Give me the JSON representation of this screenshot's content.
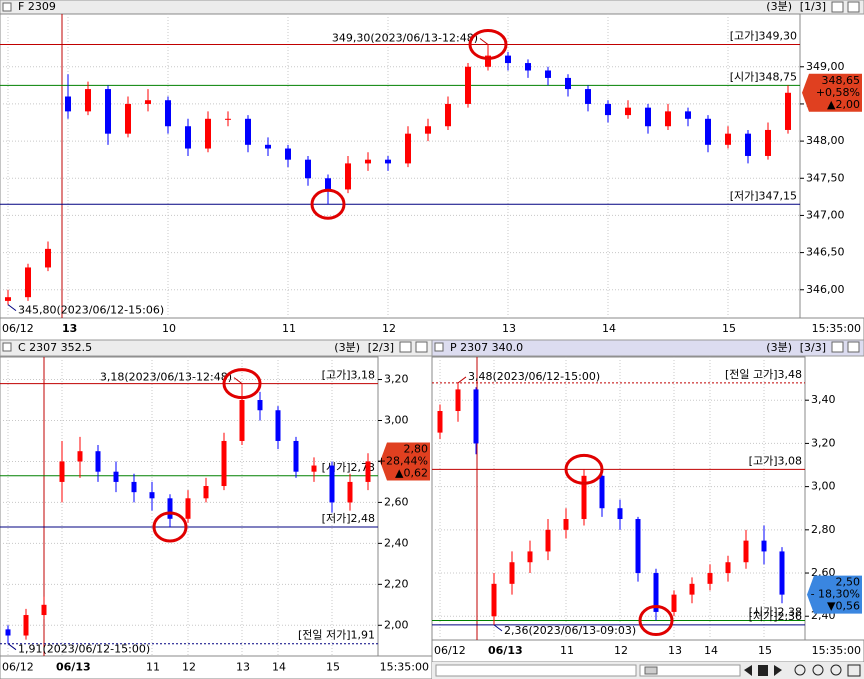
{
  "chart_data": [
    {
      "type": "candlestick",
      "title": "F 2309",
      "period": "(3분)",
      "page": "[1/3]",
      "up_color": "#ff0000",
      "down_color": "#0000ff",
      "categories": [
        "06/12",
        null,
        null,
        "13",
        null,
        null,
        null,
        null,
        "10",
        null,
        null,
        null,
        null,
        null,
        "11",
        null,
        null,
        null,
        null,
        "12",
        null,
        null,
        null,
        null,
        null,
        "13",
        null,
        null,
        null,
        null,
        "14",
        null,
        null,
        null,
        null,
        null,
        "15",
        null,
        null,
        null
      ],
      "open": [
        345.85,
        345.9,
        346.3,
        348.6,
        348.4,
        348.7,
        348.1,
        348.5,
        348.55,
        348.2,
        347.9,
        348.3,
        348.3,
        347.95,
        347.9,
        347.75,
        347.5,
        347.35,
        347.7,
        347.75,
        347.7,
        348.1,
        348.2,
        348.5,
        349.0,
        349.15,
        349.05,
        348.95,
        348.85,
        348.7,
        348.5,
        348.35,
        348.45,
        348.2,
        348.4,
        348.3,
        347.95,
        348.1,
        347.8,
        348.15
      ],
      "high": [
        346.0,
        346.35,
        346.65,
        348.9,
        348.8,
        348.75,
        348.6,
        348.7,
        348.6,
        348.3,
        348.4,
        348.4,
        348.35,
        348.05,
        347.95,
        347.8,
        347.55,
        347.8,
        347.85,
        347.8,
        348.2,
        348.3,
        348.6,
        349.05,
        349.3,
        349.2,
        349.1,
        349.0,
        348.9,
        348.75,
        348.55,
        348.55,
        348.5,
        348.5,
        348.45,
        348.35,
        348.2,
        348.15,
        348.25,
        348.75
      ],
      "low": [
        345.8,
        345.85,
        346.25,
        348.3,
        348.35,
        347.95,
        348.05,
        348.4,
        348.1,
        347.8,
        347.85,
        348.2,
        347.85,
        347.8,
        347.65,
        347.4,
        347.15,
        347.3,
        347.6,
        347.6,
        347.65,
        348.0,
        348.15,
        348.45,
        348.95,
        348.95,
        348.85,
        348.75,
        348.6,
        348.4,
        348.25,
        348.3,
        348.1,
        348.15,
        348.2,
        347.85,
        347.9,
        347.7,
        347.75,
        348.1
      ],
      "close": [
        345.9,
        346.3,
        346.55,
        348.4,
        348.7,
        348.1,
        348.5,
        348.55,
        348.2,
        347.9,
        348.3,
        348.3,
        347.95,
        347.9,
        347.75,
        347.5,
        347.35,
        347.7,
        347.75,
        347.7,
        348.1,
        348.2,
        348.5,
        349.0,
        349.15,
        349.05,
        348.95,
        348.85,
        348.7,
        348.5,
        348.35,
        348.45,
        348.2,
        348.4,
        348.3,
        347.95,
        348.1,
        347.8,
        348.15,
        348.65
      ],
      "ylim": [
        345.62,
        349.71
      ],
      "yticks": [
        {
          "value": 346.0,
          "label": "346,00"
        },
        {
          "value": 346.5,
          "label": "346,50"
        },
        {
          "value": 347.0,
          "label": "347,00"
        },
        {
          "value": 347.5,
          "label": "347,50"
        },
        {
          "value": 348.0,
          "label": "348,00"
        },
        {
          "value": 348.5,
          "label": "348,50"
        },
        {
          "value": 349.0,
          "label": "349,00"
        }
      ],
      "levels": [
        {
          "label": "[고가]349,30",
          "value": 349.3,
          "color": "#c00000",
          "style": "solid"
        },
        {
          "label": "[시가]348,75",
          "value": 348.75,
          "color": "#008000",
          "style": "solid"
        },
        {
          "label": "[저가]347,15",
          "value": 347.15,
          "color": "#000080",
          "style": "solid"
        }
      ],
      "max_label": {
        "text": "349,30(2023/06/13-12:48)",
        "value": 349.3
      },
      "min_label": {
        "text": "345,80(2023/06/12-15:06)",
        "value": 345.8
      },
      "current": {
        "texts": [
          "348,65",
          "+0,58%",
          "▲2,00"
        ],
        "value": 348.65,
        "color": "#e04020"
      },
      "x_end_label": "15:35:00"
    },
    {
      "type": "candlestick",
      "title": "C 2307 352.5",
      "period": "(3분)",
      "page": "[2/3]",
      "up_color": "#ff0000",
      "down_color": "#0000ff",
      "categories": [
        "06/12",
        null,
        null,
        "06/13",
        null,
        null,
        null,
        null,
        "11",
        null,
        "12",
        null,
        null,
        "13",
        null,
        "14",
        null,
        null,
        "15",
        null,
        null
      ],
      "open": [
        1.98,
        1.95,
        2.05,
        2.7,
        2.8,
        2.85,
        2.75,
        2.7,
        2.65,
        2.62,
        2.52,
        2.62,
        2.68,
        2.9,
        3.1,
        3.05,
        2.9,
        2.75,
        2.78,
        2.6,
        2.7
      ],
      "high": [
        2.0,
        2.08,
        2.14,
        2.9,
        2.92,
        2.88,
        2.8,
        2.74,
        2.7,
        2.64,
        2.66,
        2.72,
        2.94,
        3.18,
        3.14,
        3.07,
        2.92,
        2.82,
        2.8,
        2.74,
        2.84
      ],
      "low": [
        1.91,
        1.93,
        2.03,
        2.6,
        2.72,
        2.7,
        2.65,
        2.6,
        2.56,
        2.48,
        2.5,
        2.6,
        2.66,
        2.88,
        3.0,
        2.86,
        2.72,
        2.7,
        2.55,
        2.56,
        2.66
      ],
      "close": [
        1.95,
        2.05,
        2.1,
        2.8,
        2.85,
        2.75,
        2.7,
        2.65,
        2.62,
        2.52,
        2.62,
        2.68,
        2.9,
        3.1,
        3.05,
        2.9,
        2.75,
        2.78,
        2.6,
        2.7,
        2.8
      ],
      "ylim": [
        1.85,
        3.31
      ],
      "yticks": [
        {
          "value": 2.0,
          "label": "2,00"
        },
        {
          "value": 2.2,
          "label": "2,20"
        },
        {
          "value": 2.4,
          "label": "2,40"
        },
        {
          "value": 2.6,
          "label": "2,60"
        },
        {
          "value": 2.8,
          "label": "2,80"
        },
        {
          "value": 3.0,
          "label": "3,00"
        },
        {
          "value": 3.2,
          "label": "3,20"
        }
      ],
      "levels": [
        {
          "label": "[고가]3,18",
          "value": 3.18,
          "color": "#c00000",
          "style": "solid"
        },
        {
          "label": "[시가]2,73",
          "value": 2.73,
          "color": "#008000",
          "style": "solid"
        },
        {
          "label": "[저가]2,48",
          "value": 2.48,
          "color": "#000080",
          "style": "solid"
        },
        {
          "label": "[전일 저가]1,91",
          "value": 1.91,
          "color": "#000080",
          "style": "dotted"
        }
      ],
      "max_label": {
        "text": "3,18(2023/06/13-12:48)",
        "value": 3.18
      },
      "min_label": {
        "text": "1,91(2023/06/12-15:00)",
        "value": 1.91
      },
      "current": {
        "texts": [
          "2,80",
          "+28,44%",
          "▲0,62"
        ],
        "value": 2.8,
        "color": "#e04020"
      },
      "x_end_label": "15:35:00"
    },
    {
      "type": "candlestick",
      "title": "P 2307 340.0",
      "period": "(3분)",
      "page": "[3/3]",
      "up_color": "#ff0000",
      "down_color": "#0000ff",
      "categories": [
        "06/12",
        null,
        null,
        "06/13",
        null,
        null,
        null,
        "11",
        null,
        null,
        "12",
        null,
        null,
        "13",
        null,
        "14",
        null,
        null,
        "15",
        null
      ],
      "open": [
        3.25,
        3.35,
        3.45,
        2.4,
        2.55,
        2.65,
        2.7,
        2.8,
        2.85,
        3.05,
        2.9,
        2.85,
        2.6,
        2.42,
        2.5,
        2.55,
        2.6,
        2.65,
        2.75,
        2.7
      ],
      "high": [
        3.38,
        3.48,
        3.46,
        2.6,
        2.7,
        2.75,
        2.85,
        2.9,
        3.08,
        3.06,
        2.94,
        2.86,
        2.62,
        2.52,
        2.58,
        2.64,
        2.68,
        2.8,
        2.82,
        2.72
      ],
      "low": [
        3.22,
        3.3,
        3.15,
        2.36,
        2.5,
        2.6,
        2.66,
        2.76,
        2.82,
        2.86,
        2.8,
        2.56,
        2.38,
        2.4,
        2.46,
        2.52,
        2.56,
        2.62,
        2.64,
        2.46
      ],
      "close": [
        3.35,
        3.45,
        3.2,
        2.55,
        2.65,
        2.7,
        2.8,
        2.85,
        3.05,
        2.9,
        2.85,
        2.6,
        2.42,
        2.5,
        2.55,
        2.6,
        2.65,
        2.75,
        2.7,
        2.5
      ],
      "ylim": [
        2.29,
        3.6
      ],
      "yticks": [
        {
          "value": 2.4,
          "label": "2,40"
        },
        {
          "value": 2.6,
          "label": "2,60"
        },
        {
          "value": 2.8,
          "label": "2,80"
        },
        {
          "value": 3.0,
          "label": "3,00"
        },
        {
          "value": 3.2,
          "label": "3,20"
        },
        {
          "value": 3.4,
          "label": "3,40"
        }
      ],
      "levels": [
        {
          "label": "[전일 고가]3,48",
          "value": 3.48,
          "color": "#c00000",
          "style": "dotted"
        },
        {
          "label": "[고가]3,08",
          "value": 3.08,
          "color": "#c00000",
          "style": "solid"
        },
        {
          "label": "[시가]2,38",
          "value": 2.38,
          "color": "#008000",
          "style": "solid"
        },
        {
          "label": "[저가]2,36",
          "value": 2.36,
          "color": "#000080",
          "style": "solid"
        }
      ],
      "max_label": {
        "text": "3,48(2023/06/12-15:00)",
        "value": 3.48
      },
      "min_label": {
        "text": "2,36(2023/06/13-09:03)",
        "value": 2.36
      },
      "current": {
        "texts": [
          "2,50",
          "- 18,30%",
          "▼0,56"
        ],
        "value": 2.5,
        "color": "#3a86e0"
      },
      "x_end_label": "15:35:00"
    }
  ]
}
